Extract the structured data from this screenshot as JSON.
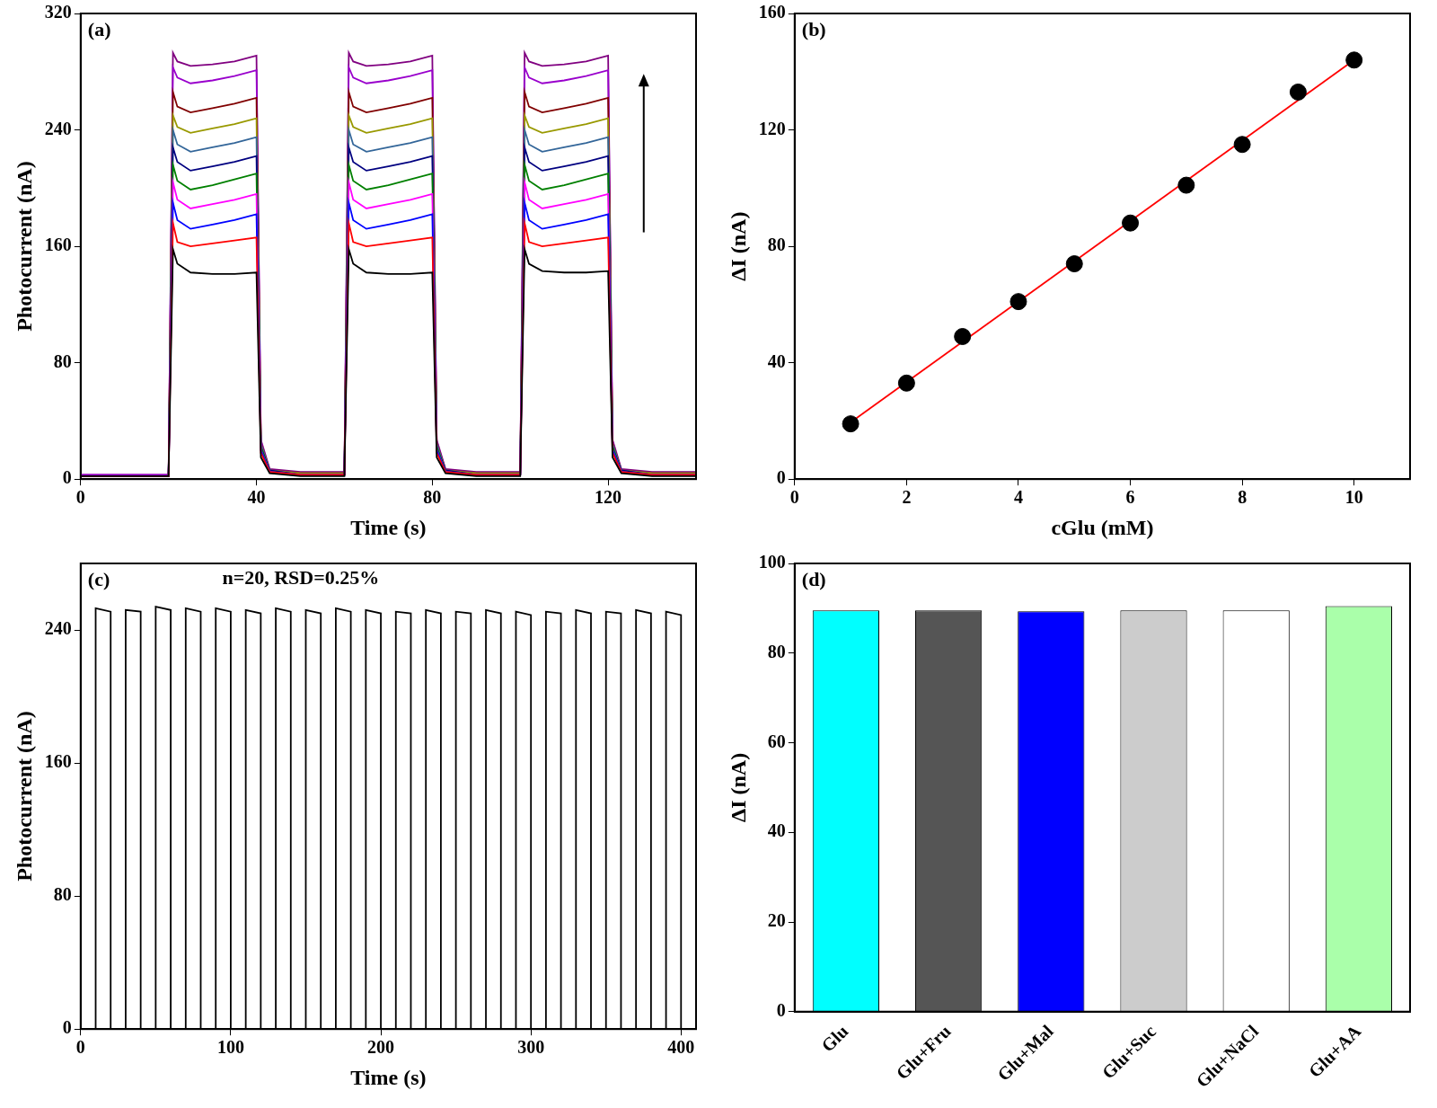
{
  "chart_data": [
    {
      "type": "line",
      "title": "(a)",
      "x_label": "Time (s)",
      "y_label": "Photocurrent (nA)",
      "xlim": [
        0,
        140
      ],
      "xticks": [
        0,
        40,
        80,
        120
      ],
      "ylim": [
        0,
        320
      ],
      "yticks": [
        0,
        80,
        160,
        240,
        320
      ],
      "grid": false,
      "x": [
        0,
        20,
        21,
        22,
        25,
        30,
        35,
        40,
        41,
        43,
        50,
        60,
        61,
        62,
        65,
        70,
        75,
        80,
        81,
        83,
        90,
        100,
        101,
        102,
        105,
        110,
        115,
        120,
        121,
        123,
        130,
        140
      ],
      "series": [
        {
          "color": "#000000",
          "values": [
            2,
            2,
            158,
            148,
            142,
            141,
            141,
            142,
            15,
            4,
            2,
            2,
            158,
            148,
            142,
            141,
            141,
            142,
            15,
            4,
            2,
            2,
            158,
            148,
            143,
            142,
            142,
            143,
            15,
            4,
            2,
            2
          ]
        },
        {
          "color": "#ff0000",
          "values": [
            2,
            2,
            176,
            163,
            160,
            162,
            164,
            166,
            18,
            5,
            3,
            3,
            176,
            163,
            160,
            162,
            164,
            166,
            18,
            5,
            3,
            3,
            176,
            163,
            160,
            162,
            164,
            166,
            18,
            5,
            3,
            3
          ]
        },
        {
          "color": "#0000ff",
          "values": [
            2,
            2,
            190,
            178,
            172,
            175,
            178,
            182,
            20,
            5,
            3,
            3,
            190,
            178,
            172,
            175,
            178,
            182,
            20,
            5,
            3,
            3,
            190,
            178,
            172,
            175,
            178,
            182,
            20,
            5,
            3,
            3
          ]
        },
        {
          "color": "#ff00ff",
          "values": [
            2,
            2,
            204,
            192,
            186,
            189,
            192,
            196,
            20,
            5,
            3,
            3,
            204,
            192,
            186,
            189,
            192,
            196,
            20,
            5,
            3,
            3,
            204,
            192,
            186,
            189,
            192,
            196,
            20,
            5,
            3,
            3
          ]
        },
        {
          "color": "#008000",
          "values": [
            2,
            2,
            216,
            205,
            199,
            202,
            206,
            210,
            22,
            5,
            3,
            3,
            216,
            205,
            199,
            202,
            206,
            210,
            22,
            5,
            3,
            3,
            216,
            205,
            199,
            202,
            206,
            210,
            22,
            5,
            3,
            3
          ]
        },
        {
          "color": "#000080",
          "values": [
            2,
            2,
            228,
            218,
            212,
            215,
            218,
            222,
            22,
            6,
            3,
            3,
            228,
            218,
            212,
            215,
            218,
            222,
            22,
            6,
            3,
            3,
            228,
            218,
            212,
            215,
            218,
            222,
            22,
            6,
            3,
            3
          ]
        },
        {
          "color": "#336699",
          "values": [
            2,
            2,
            240,
            230,
            225,
            228,
            231,
            235,
            24,
            6,
            3,
            3,
            240,
            230,
            225,
            228,
            231,
            235,
            24,
            6,
            3,
            3,
            240,
            230,
            225,
            228,
            231,
            235,
            24,
            6,
            3,
            3
          ]
        },
        {
          "color": "#999900",
          "values": [
            2,
            2,
            250,
            242,
            238,
            241,
            244,
            248,
            24,
            6,
            4,
            4,
            250,
            242,
            238,
            241,
            244,
            248,
            24,
            6,
            4,
            4,
            250,
            242,
            238,
            241,
            244,
            248,
            24,
            6,
            4,
            4
          ]
        },
        {
          "color": "#800000",
          "values": [
            2,
            2,
            266,
            256,
            252,
            255,
            258,
            262,
            25,
            6,
            4,
            4,
            266,
            256,
            252,
            255,
            258,
            262,
            25,
            6,
            4,
            4,
            266,
            256,
            252,
            255,
            258,
            262,
            25,
            6,
            4,
            4
          ]
        },
        {
          "color": "#9900cc",
          "values": [
            3,
            3,
            283,
            276,
            272,
            274,
            277,
            281,
            26,
            6,
            4,
            4,
            283,
            276,
            272,
            274,
            277,
            281,
            26,
            6,
            4,
            4,
            283,
            276,
            272,
            274,
            277,
            281,
            26,
            6,
            4,
            4
          ]
        },
        {
          "color": "#800080",
          "values": [
            3,
            3,
            293,
            287,
            284,
            285,
            287,
            291,
            27,
            7,
            5,
            5,
            293,
            287,
            284,
            285,
            287,
            291,
            27,
            7,
            5,
            5,
            293,
            287,
            284,
            285,
            287,
            291,
            27,
            7,
            5,
            5
          ]
        }
      ]
    },
    {
      "type": "scatter",
      "title": "(b)",
      "x_label": "cGlu (mM)",
      "y_label": "ΔI (nA)",
      "xlim": [
        0,
        11
      ],
      "xticks": [
        0,
        2,
        4,
        6,
        8,
        10
      ],
      "ylim": [
        0,
        160
      ],
      "yticks": [
        0,
        40,
        80,
        120,
        160
      ],
      "grid": false,
      "series": [
        {
          "type": "scatter",
          "marker": "circle",
          "color": "#000000",
          "x": [
            1,
            2,
            3,
            4,
            5,
            6,
            7,
            8,
            9,
            10
          ],
          "values": [
            19,
            33,
            49,
            61,
            74,
            88,
            101,
            115,
            133,
            144
          ]
        },
        {
          "type": "line",
          "line_style": "solid",
          "color": "#ff0000",
          "x": [
            1,
            10
          ],
          "values": [
            19.5,
            144
          ]
        }
      ]
    },
    {
      "type": "line",
      "title": "(c)",
      "annotations": [
        "n=20, RSD=0.25%"
      ],
      "x_label": "Time (s)",
      "y_label": "Photocurrent (nA)",
      "xlim": [
        0,
        410
      ],
      "xticks": [
        0,
        100,
        200,
        300,
        400
      ],
      "ylim": [
        0,
        280
      ],
      "yticks": [
        0,
        80,
        160,
        240
      ],
      "grid": false,
      "x": [
        0,
        10,
        10,
        20,
        20,
        30,
        30,
        40,
        40,
        50,
        50,
        60,
        60,
        70,
        70,
        80,
        80,
        90,
        90,
        100,
        100,
        110,
        110,
        120,
        120,
        130,
        130,
        140,
        140,
        150,
        150,
        160,
        160,
        170,
        170,
        180,
        180,
        190,
        190,
        200,
        200,
        210,
        210,
        220,
        220,
        230,
        230,
        240,
        240,
        250,
        250,
        260,
        260,
        270,
        270,
        280,
        280,
        290,
        290,
        300,
        300,
        310,
        310,
        320,
        320,
        330,
        330,
        340,
        340,
        350,
        350,
        360,
        360,
        370,
        370,
        380,
        380,
        390,
        390,
        400,
        400
      ],
      "series": [
        {
          "color": "#000000",
          "values": [
            0,
            0,
            253,
            251,
            0,
            0,
            252,
            251,
            0,
            0,
            254,
            252,
            0,
            0,
            253,
            251,
            0,
            0,
            253,
            251,
            0,
            0,
            252,
            250,
            0,
            0,
            253,
            251,
            0,
            0,
            252,
            250,
            0,
            0,
            253,
            251,
            0,
            0,
            252,
            250,
            0,
            0,
            251,
            250,
            0,
            0,
            252,
            250,
            0,
            0,
            251,
            250,
            0,
            0,
            252,
            250,
            0,
            0,
            251,
            249,
            0,
            0,
            251,
            250,
            0,
            0,
            252,
            250,
            0,
            0,
            251,
            250,
            0,
            0,
            252,
            250,
            0,
            0,
            251,
            249,
            0
          ]
        }
      ]
    },
    {
      "type": "bar",
      "title": "(d)",
      "y_label": "ΔI (nA)",
      "categories": [
        "Glu",
        "Glu+Fru",
        "Glu+Mal",
        "Glu+Suc",
        "Glu+NaCl",
        "Glu+AA"
      ],
      "values": [
        89.5,
        89.5,
        89.3,
        89.5,
        89.5,
        90.5
      ],
      "colors": [
        "#00ffff",
        "#555555",
        "#0000ff",
        "#cccccc",
        "#ffffff",
        "#aaffaa"
      ],
      "ylim": [
        0,
        100
      ],
      "yticks": [
        0,
        20,
        40,
        60,
        80,
        100
      ],
      "grid": false
    }
  ]
}
